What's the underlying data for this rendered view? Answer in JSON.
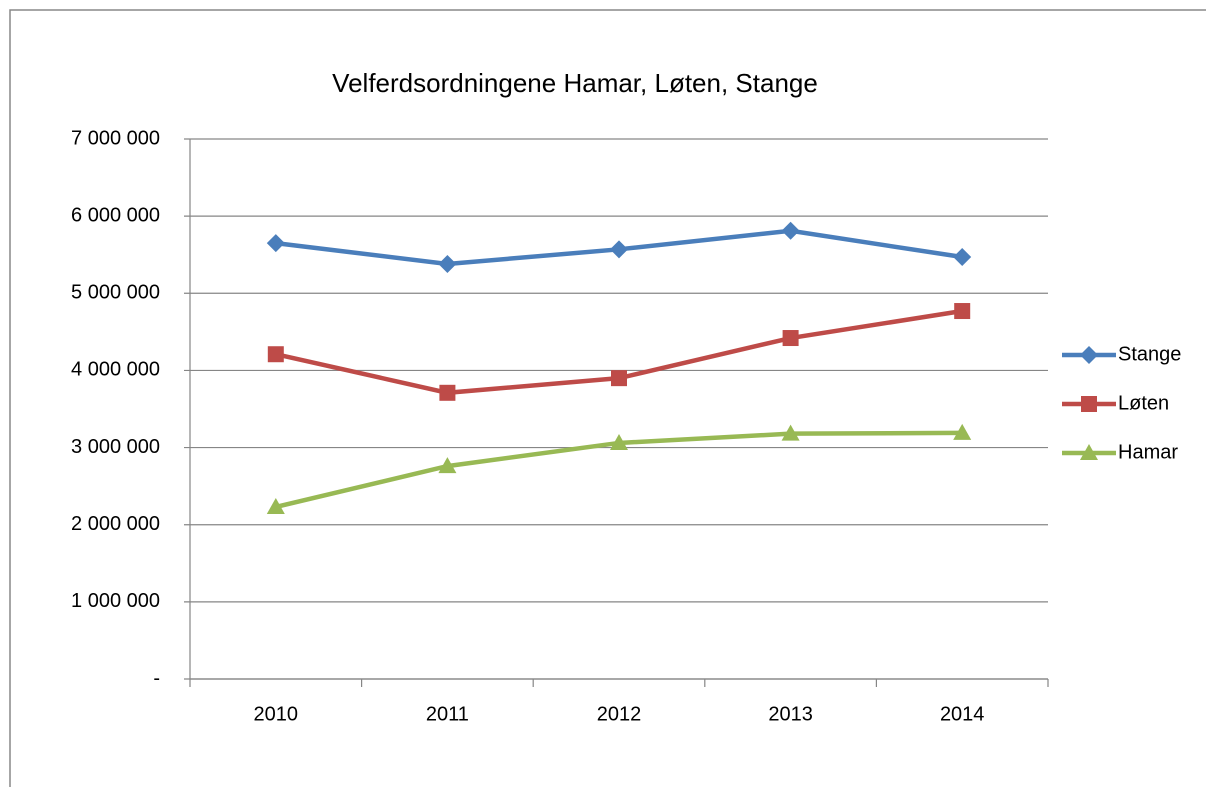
{
  "chart_data": {
    "type": "line",
    "title": "Velferdsordningene Hamar, Løten, Stange",
    "categories": [
      "2010",
      "2011",
      "2012",
      "2013",
      "2014"
    ],
    "series": [
      {
        "name": "Stange",
        "color": "#4a7ebb",
        "marker": "diamond",
        "values": [
          5650000,
          5380000,
          5570000,
          5810000,
          5470000
        ]
      },
      {
        "name": "Løten",
        "color": "#be4b48",
        "marker": "square",
        "values": [
          4210000,
          3710000,
          3900000,
          4420000,
          4770000
        ]
      },
      {
        "name": "Hamar",
        "color": "#98b954",
        "marker": "triangle",
        "values": [
          2230000,
          2760000,
          3060000,
          3180000,
          3190000
        ]
      }
    ],
    "ylim": [
      0,
      7000000
    ],
    "yticks": [
      {
        "value": 0,
        "label": "-"
      },
      {
        "value": 1000000,
        "label": "1 000 000"
      },
      {
        "value": 2000000,
        "label": "2 000 000"
      },
      {
        "value": 3000000,
        "label": "3 000 000"
      },
      {
        "value": 4000000,
        "label": "4 000 000"
      },
      {
        "value": 5000000,
        "label": "5 000 000"
      },
      {
        "value": 6000000,
        "label": "6 000 000"
      },
      {
        "value": 7000000,
        "label": "7 000 000"
      }
    ],
    "grid": true,
    "legend": "right"
  }
}
